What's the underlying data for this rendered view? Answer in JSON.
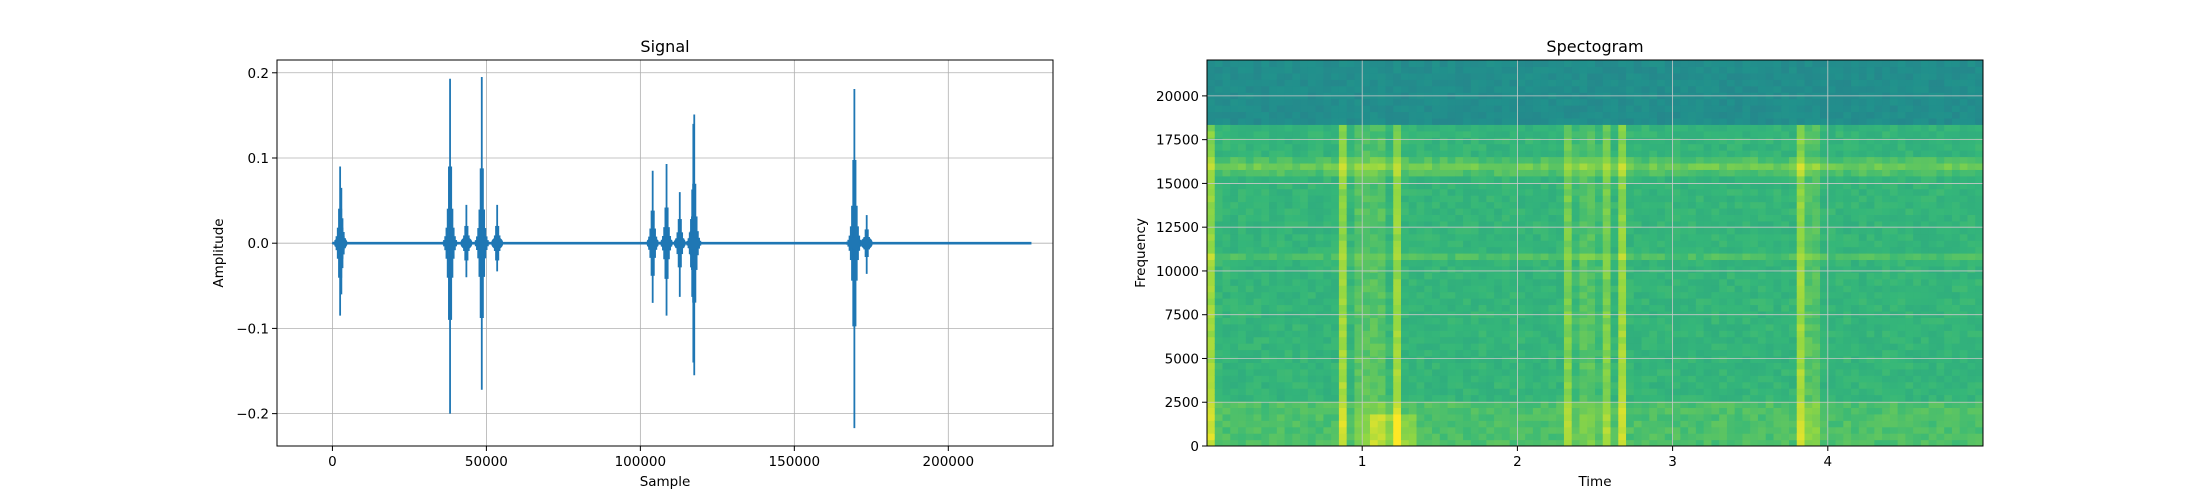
{
  "chart_data": [
    {
      "type": "line",
      "title": "Signal",
      "xlabel": "Sample",
      "ylabel": "Amplitude",
      "xlim": [
        -18000,
        234000
      ],
      "ylim": [
        -0.238,
        0.215
      ],
      "xticks": [
        0,
        50000,
        100000,
        150000,
        200000
      ],
      "yticks": [
        -0.2,
        -0.1,
        0.0,
        0.1,
        0.2
      ],
      "xtick_labels": [
        "0",
        "50000",
        "100000",
        "150000",
        "200000"
      ],
      "ytick_labels": [
        "−0.2",
        "−0.1",
        "0.0",
        "0.1",
        "0.2"
      ],
      "grid": true,
      "color": "#1f77b4",
      "x_range": [
        0,
        227000
      ],
      "spikes": [
        {
          "x": 2500,
          "max": 0.09,
          "min": -0.085
        },
        {
          "x": 2900,
          "max": 0.065,
          "min": -0.06
        },
        {
          "x": 38200,
          "max": 0.193,
          "min": -0.2
        },
        {
          "x": 43500,
          "max": 0.045,
          "min": -0.04
        },
        {
          "x": 48500,
          "max": 0.195,
          "min": -0.172
        },
        {
          "x": 53500,
          "max": 0.045,
          "min": -0.033
        },
        {
          "x": 104000,
          "max": 0.085,
          "min": -0.07
        },
        {
          "x": 108500,
          "max": 0.093,
          "min": -0.085
        },
        {
          "x": 112800,
          "max": 0.06,
          "min": -0.063
        },
        {
          "x": 117500,
          "max": 0.151,
          "min": -0.155
        },
        {
          "x": 117200,
          "max": 0.14,
          "min": -0.14
        },
        {
          "x": 169500,
          "max": 0.181,
          "min": -0.217
        },
        {
          "x": 173500,
          "max": 0.033,
          "min": -0.036
        }
      ]
    },
    {
      "type": "heatmap",
      "title": "Spectogram",
      "xlabel": "Time",
      "ylabel": "Frequency",
      "xlim": [
        0.0,
        5.0
      ],
      "ylim": [
        0,
        22050
      ],
      "xticks": [
        1,
        2,
        3,
        4
      ],
      "yticks": [
        0,
        2500,
        5000,
        7500,
        10000,
        12500,
        15000,
        17500,
        20000
      ],
      "xtick_labels": [
        "1",
        "2",
        "3",
        "4"
      ],
      "ytick_labels": [
        "0",
        "2500",
        "5000",
        "7500",
        "10000",
        "12500",
        "15000",
        "17500",
        "20000"
      ],
      "grid": true,
      "colormap": "viridis",
      "cutoff_frequency": 18500,
      "event_times": [
        0.03,
        0.88,
        1.0,
        1.1,
        1.22,
        2.34,
        2.45,
        2.56,
        2.67,
        3.83,
        3.9
      ],
      "horizontal_bands": [
        15800,
        16100,
        10800
      ]
    }
  ]
}
